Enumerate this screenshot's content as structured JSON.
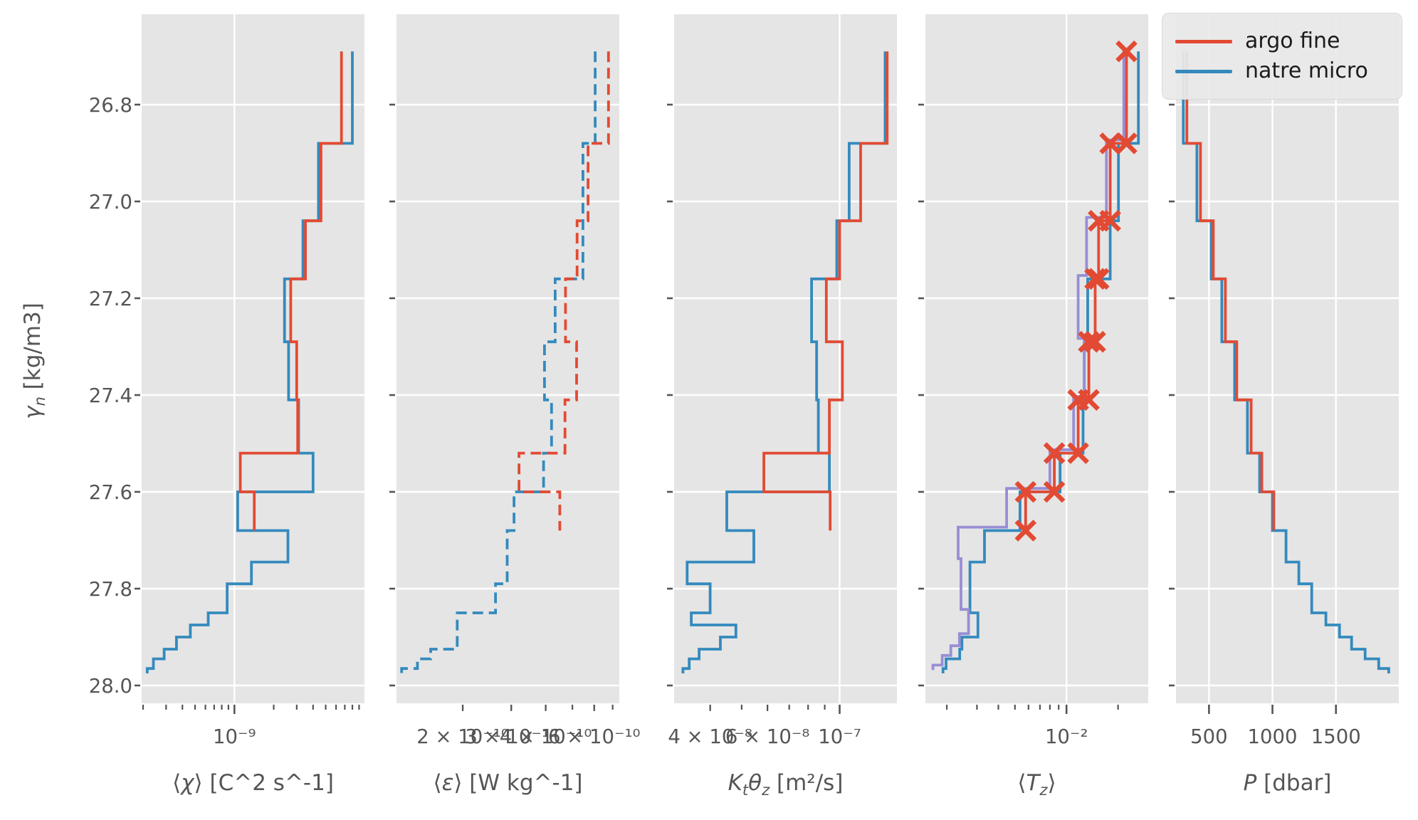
{
  "colors": {
    "red": "#E24A33",
    "blue": "#348ABD",
    "purple": "#988ED5",
    "panel_bg": "#E5E5E5",
    "grid": "#FFFFFF",
    "tick": "#555555",
    "legend_bg": "#E9E9E9",
    "legend_text": "#1B1B1B"
  },
  "legend": {
    "items": [
      {
        "label": "argo fine",
        "color": "red"
      },
      {
        "label": "natre micro",
        "color": "blue"
      }
    ]
  },
  "chart_data": {
    "type": "line",
    "drawstyle": "steps-vertical-profile",
    "ylabel_text": "γn [kg/m3]",
    "ylabel_segments": [
      {
        "t": "γ",
        "i": 1
      },
      {
        "t": "n",
        "i": 1,
        "sub": 1
      },
      {
        "t": " [kg/m3]"
      }
    ],
    "ylim": [
      26.61,
      28.04
    ],
    "yticks": [
      {
        "v": 26.8,
        "label": "26.8"
      },
      {
        "v": 27.0,
        "label": "27.0"
      },
      {
        "v": 27.2,
        "label": "27.2"
      },
      {
        "v": 27.4,
        "label": "27.4"
      },
      {
        "v": 27.6,
        "label": "27.6"
      },
      {
        "v": 27.8,
        "label": "27.8"
      },
      {
        "v": 28.0,
        "label": "28.0"
      }
    ],
    "gamma_edges": [
      26.69,
      26.88,
      27.04,
      27.16,
      27.29,
      27.41,
      27.52,
      27.6,
      27.68,
      27.745,
      27.79,
      27.85,
      27.875,
      27.9,
      27.925,
      27.945,
      27.965,
      27.975
    ],
    "panels": [
      {
        "id": "chi",
        "xlabel_text": "⟨χ⟩ [C^2 s^-1]",
        "xlabel_segments": [
          {
            "t": "⟨"
          },
          {
            "t": "χ",
            "i": 1
          },
          {
            "t": "⟩ [C^2 s^-1]"
          }
        ],
        "xscale": "log",
        "xlim": [
          1.95e-10,
          9.9e-09
        ],
        "xticks": [
          {
            "v": 1e-09,
            "label": "10⁻⁹",
            "major": true
          }
        ],
        "gridlines": [
          1e-09
        ],
        "series": [
          {
            "name": "natre micro",
            "color": "blue",
            "style": "solid",
            "values": [
              8e-09,
              4.4e-09,
              3.35e-09,
              2.42e-09,
              2.6e-09,
              3.1e-09,
              4e-09,
              1.06e-09,
              2.57e-09,
              1.35e-09,
              8.8e-10,
              6.3e-10,
              4.6e-10,
              3.6e-10,
              2.9e-10,
              2.4e-10,
              2.15e-10
            ]
          },
          {
            "name": "argo fine",
            "color": "red",
            "style": "solid",
            "values": [
              6.6e-09,
              4.6e-09,
              3.5e-09,
              2.7e-09,
              3e-09,
              3.05e-09,
              1.11e-09,
              1.42e-09
            ]
          }
        ]
      },
      {
        "id": "eps",
        "xlabel_text": "⟨ε⟩ [W kg^-1]",
        "xlabel_segments": [
          {
            "t": "⟨"
          },
          {
            "t": "ε",
            "i": 1
          },
          {
            "t": "⟩ [W kg^-1]"
          }
        ],
        "xscale": "log",
        "xlim": [
          1.15e-10,
          7.4e-10
        ],
        "xticks": [
          {
            "v": 2e-10,
            "label": "2 × 10⁻¹⁰",
            "major": false
          },
          {
            "v": 3e-10,
            "label": "3 × 10⁻¹⁰",
            "major": false
          },
          {
            "v": 4e-10,
            "label": "4 × 10⁻¹⁰",
            "major": false
          },
          {
            "v": 6e-10,
            "label": "6 × 10⁻¹⁰",
            "major": false
          }
        ],
        "gridlines": [],
        "series": [
          {
            "name": "natre micro",
            "color": "blue",
            "style": "dashed",
            "values": [
              6.05e-10,
              5.46e-10,
              5.46e-10,
              4.33e-10,
              3.96e-10,
              4.2e-10,
              3.93e-10,
              3.07e-10,
              2.9e-10,
              2.9e-10,
              2.63e-10,
              1.91e-10,
              1.91e-10,
              1.91e-10,
              1.53e-10,
              1.37e-10,
              1.2e-10
            ]
          },
          {
            "name": "argo fine",
            "color": "red",
            "style": "dashed",
            "values": [
              6.76e-10,
              5.7e-10,
              5.2e-10,
              4.72e-10,
              5.18e-10,
              4.7e-10,
              3.2e-10,
              4.5e-10
            ]
          }
        ]
      },
      {
        "id": "ktz",
        "xlabel_text": "Ktθz [m²/s]",
        "xlabel_segments": [
          {
            "t": "K",
            "i": 1
          },
          {
            "t": "t",
            "i": 1,
            "sub": 1
          },
          {
            "t": "θ",
            "i": 1
          },
          {
            "t": "z",
            "i": 1,
            "sub": 1
          },
          {
            "t": " [m²/s]"
          }
        ],
        "xscale": "log",
        "xlim": [
          3.1e-08,
          1.5e-07
        ],
        "xticks": [
          {
            "v": 4e-08,
            "label": "4 × 10⁻⁸",
            "major": false
          },
          {
            "v": 6e-08,
            "label": "6 × 10⁻⁸",
            "major": false
          },
          {
            "v": 1e-07,
            "label": "10⁻⁷",
            "major": true
          }
        ],
        "gridlines": [
          1e-07
        ],
        "series": [
          {
            "name": "natre micro",
            "color": "blue",
            "style": "solid",
            "values": [
              1.38e-07,
              1.07e-07,
              9.8e-08,
              8.2e-08,
              8.5e-08,
              8.6e-08,
              9.3e-08,
              4.5e-08,
              5.45e-08,
              3.4e-08,
              4e-08,
              3.5e-08,
              4.8e-08,
              4.3e-08,
              3.7e-08,
              3.45e-08,
              3.3e-08
            ]
          },
          {
            "name": "argo fine",
            "color": "red",
            "style": "solid",
            "values": [
              1.4e-07,
              1.16e-07,
              1e-07,
              9.1e-08,
              1.02e-07,
              9.3e-08,
              5.85e-08,
              9.35e-08
            ]
          }
        ]
      },
      {
        "id": "tz",
        "xlabel_text": "⟨Tz⟩",
        "xlabel_segments": [
          {
            "t": "⟨"
          },
          {
            "t": "T",
            "i": 1
          },
          {
            "t": "z",
            "i": 1,
            "sub": 1
          },
          {
            "t": "⟩"
          }
        ],
        "xscale": "log",
        "xlim": [
          0.0015,
          0.03
        ],
        "xticks": [
          {
            "v": 0.01,
            "label": "10⁻²",
            "major": true
          }
        ],
        "gridlines": [
          0.01
        ],
        "series": [
          {
            "name": "natre micro",
            "color": "blue",
            "style": "solid",
            "values": [
              0.0263,
              0.0201,
              0.018,
              0.0133,
              0.0127,
              0.0125,
              0.00917,
              0.00535,
              0.00332,
              0.00273,
              0.00273,
              0.00304,
              0.00304,
              0.00245,
              0.00238,
              0.00198,
              0.0019
            ]
          },
          {
            "name": "",
            "color": "purple",
            "style": "solid",
            "gamma_offset": -0.007,
            "values": [
              0.0216,
              0.0171,
              0.0131,
              0.0117,
              0.0127,
              0.011,
              0.008,
              0.00447,
              0.00233,
              0.00242,
              0.00242,
              0.00268,
              0.00268,
              0.00237,
              0.00211,
              0.00188,
              0.00166
            ]
          },
          {
            "name": "argo fine",
            "color": "red",
            "style": "solid",
            "values": [
              0.0224,
              0.018,
              0.0154,
              0.0147,
              0.0135,
              0.0117,
              0.00849,
              0.00577
            ]
          }
        ],
        "markers": {
          "color": "red",
          "shape": "x",
          "points": [
            [
              0.0224,
              26.69
            ],
            [
              0.0224,
              26.88
            ],
            [
              0.018,
              26.88
            ],
            [
              0.018,
              27.04
            ],
            [
              0.0154,
              27.04
            ],
            [
              0.0154,
              27.16
            ],
            [
              0.0147,
              27.16
            ],
            [
              0.0147,
              27.29
            ],
            [
              0.0135,
              27.29
            ],
            [
              0.0135,
              27.41
            ],
            [
              0.0117,
              27.41
            ],
            [
              0.0117,
              27.52
            ],
            [
              0.00849,
              27.52
            ],
            [
              0.00849,
              27.6
            ],
            [
              0.00577,
              27.6
            ],
            [
              0.00577,
              27.68
            ]
          ]
        }
      },
      {
        "id": "p",
        "xlabel_text": "P [dbar]",
        "xlabel_segments": [
          {
            "t": "P",
            "i": 1
          },
          {
            "t": " [dbar]"
          }
        ],
        "xscale": "linear",
        "xlim": [
          240,
          1995
        ],
        "xticks": [
          {
            "v": 500,
            "label": "500",
            "major": true
          },
          {
            "v": 1000,
            "label": "1000",
            "major": true
          },
          {
            "v": 1500,
            "label": "1500",
            "major": true
          }
        ],
        "gridlines": [
          500,
          1000,
          1500
        ],
        "series": [
          {
            "name": "natre micro",
            "color": "blue",
            "style": "solid",
            "values": [
              298,
              405,
              517,
              601,
              702,
              803,
              899,
              1000,
              1107,
              1208,
              1309,
              1421,
              1528,
              1623,
              1730,
              1837,
              1916
            ]
          },
          {
            "name": "argo fine",
            "color": "red",
            "style": "solid",
            "values": [
              326,
              433,
              534,
              629,
              719,
              832,
              916,
              1011
            ]
          }
        ]
      }
    ]
  }
}
